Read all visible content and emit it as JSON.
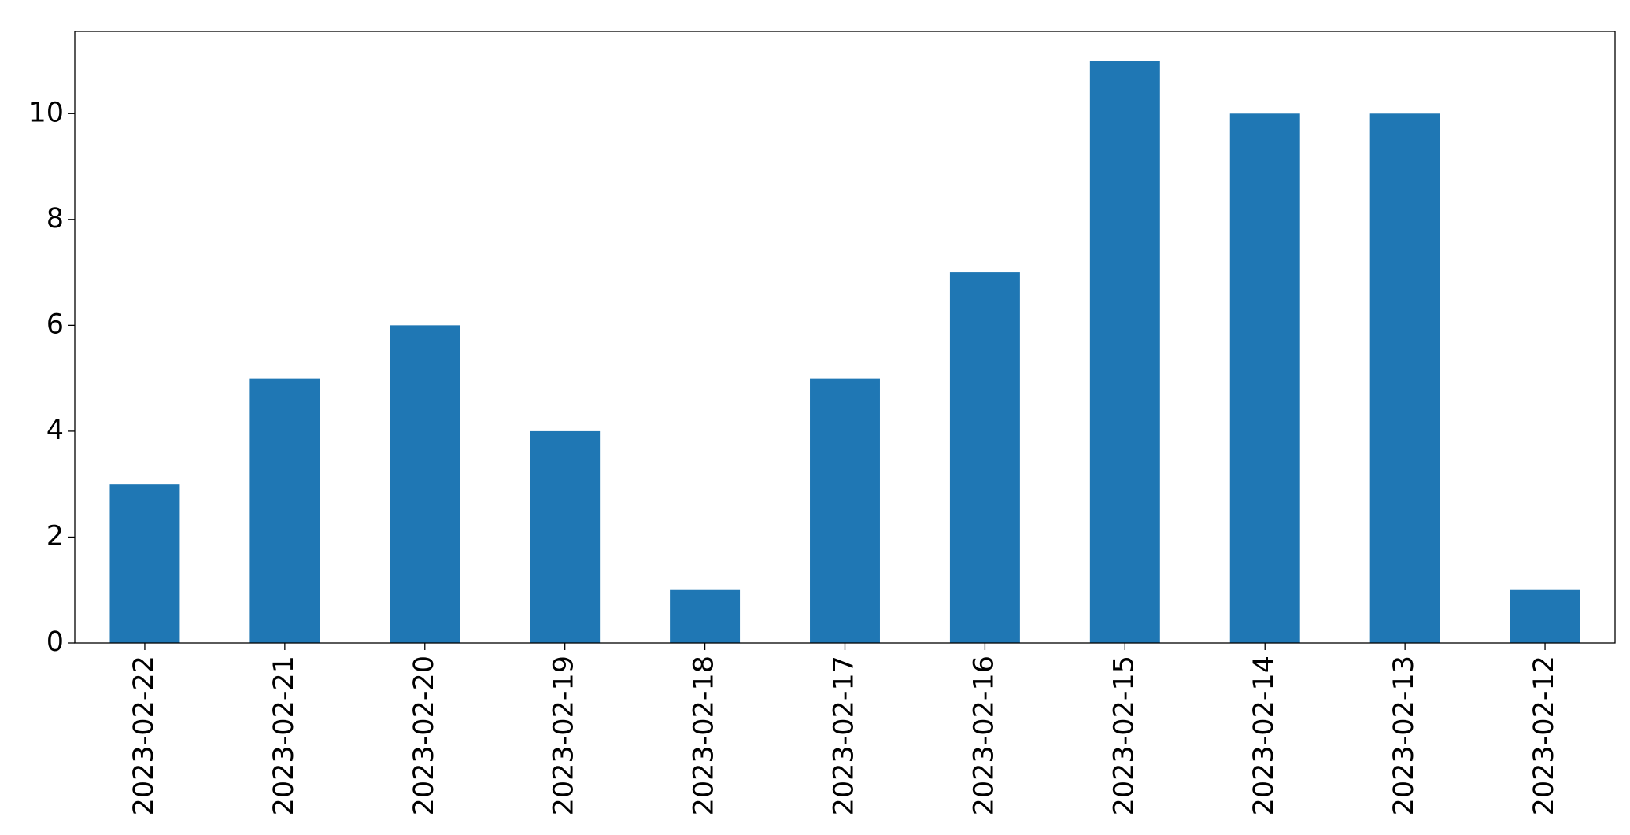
{
  "chart_data": {
    "type": "bar",
    "categories": [
      "2023-02-22",
      "2023-02-21",
      "2023-02-20",
      "2023-02-19",
      "2023-02-18",
      "2023-02-17",
      "2023-02-16",
      "2023-02-15",
      "2023-02-14",
      "2023-02-13",
      "2023-02-12"
    ],
    "values": [
      3,
      5,
      6,
      4,
      1,
      5,
      7,
      11,
      10,
      10,
      1
    ],
    "color": "#1f77b4",
    "ylim": [
      0,
      11.55
    ],
    "yticks": [
      0,
      2,
      4,
      6,
      8,
      10
    ],
    "grid": false
  }
}
